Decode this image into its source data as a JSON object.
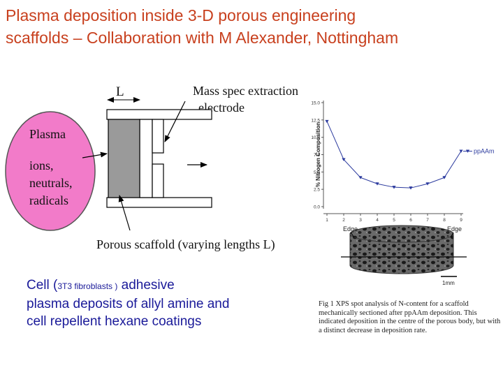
{
  "title": {
    "line1": "Plasma deposition inside 3-D porous engineering",
    "line2": "scaffolds – Collaboration with M Alexander, Nottingham"
  },
  "diagram": {
    "length_label": "L",
    "mass_spec_label_1": "Mass spec extraction",
    "mass_spec_label_2": "electrode",
    "plasma_label": "Plasma",
    "plasma_species": [
      "ions,",
      "neutrals,",
      "radicals"
    ],
    "scaffold_label": "Porous scaffold (varying lengths L)"
  },
  "cell_text": {
    "part1": "Cell (",
    "part2": "3T3 fibroblasts )",
    "part3": " adhesive",
    "line2": "plasma deposits of allyl amine and",
    "line3": "cell repellent hexane coatings"
  },
  "figure": {
    "edge_left": "Edge",
    "edge_right": "Edge",
    "scale_label": "1mm"
  },
  "chart_data": {
    "type": "line",
    "x": [
      1,
      2,
      3,
      4,
      5,
      6,
      7,
      8,
      9
    ],
    "series": [
      {
        "name": "ppAAm",
        "values": [
          12.3,
          6.8,
          4.2,
          3.3,
          2.8,
          2.7,
          3.3,
          4.2,
          8.0
        ]
      }
    ],
    "xticks": [
      "1",
      "2",
      "3",
      "4",
      "5",
      "6",
      "7",
      "8",
      "9"
    ],
    "yticks": [
      "0.0",
      "2.5",
      "5.0",
      "7.5",
      "10.0",
      "12.5",
      "15.0"
    ],
    "ylabel": "% Nitrogen Composition",
    "xlabel": "",
    "ylim": [
      0,
      15
    ],
    "xlim": [
      1,
      9
    ],
    "legend_position": "right",
    "marker": "triangle-down",
    "color": "#2b3a9e"
  },
  "caption": "Fig 1 XPS spot analysis of N-content for a scaffold mechanically sectioned after ppAAm deposition. This indicated deposition in the centre of the porous body, but with a distinct decrease in deposition rate.",
  "colors": {
    "title": "#c8401e",
    "body_text": "#1a1a99",
    "plasma": "#f27bc9",
    "scaffold": "#9a9a9a",
    "series": "#2b3a9e"
  }
}
